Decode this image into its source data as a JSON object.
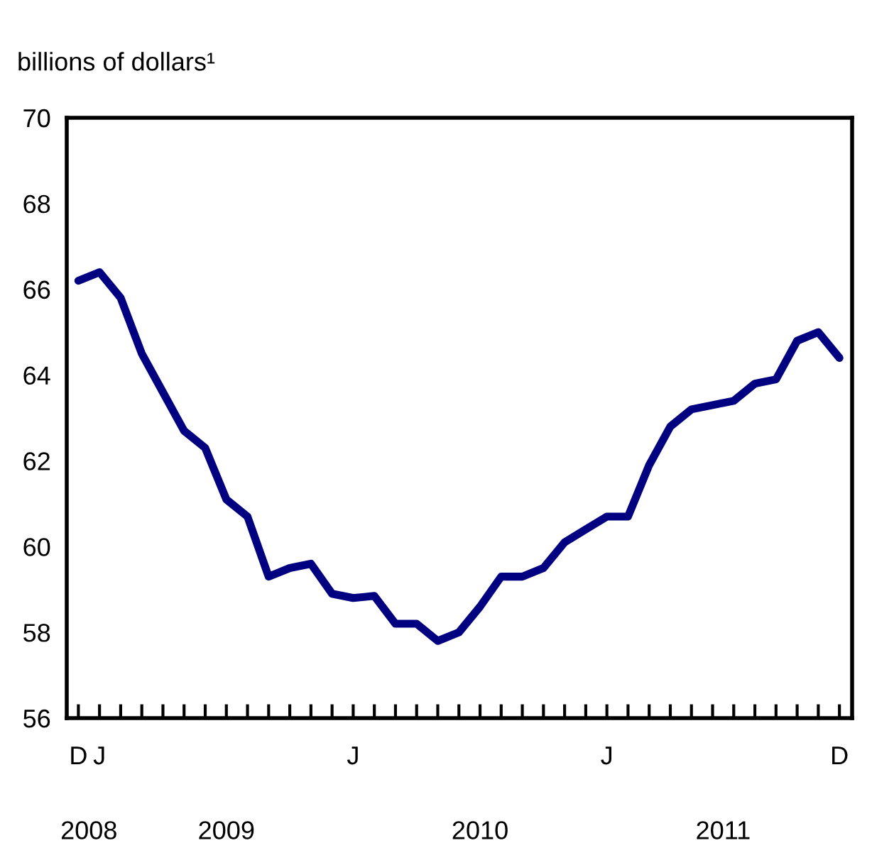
{
  "chart_data": {
    "type": "line",
    "ylabel": "billions of dollars¹",
    "categories": [
      "D",
      "J",
      null,
      null,
      null,
      null,
      null,
      null,
      null,
      null,
      null,
      null,
      null,
      "J",
      null,
      null,
      null,
      null,
      null,
      null,
      null,
      null,
      null,
      null,
      null,
      "J",
      null,
      null,
      null,
      null,
      null,
      null,
      null,
      null,
      null,
      null,
      "D"
    ],
    "series": [
      {
        "color": "#000080",
        "values": [
          66.2,
          66.4,
          65.8,
          64.5,
          63.6,
          62.7,
          62.3,
          61.1,
          60.7,
          59.3,
          59.5,
          59.6,
          58.9,
          58.8,
          58.85,
          58.2,
          58.2,
          57.8,
          58.0,
          58.6,
          59.3,
          59.3,
          59.5,
          60.1,
          60.4,
          60.7,
          60.7,
          61.9,
          62.8,
          63.2,
          63.3,
          63.4,
          63.8,
          63.9,
          64.8,
          65.0,
          64.4
        ]
      }
    ],
    "ylim": [
      56,
      70
    ],
    "yticks": [
      56,
      58,
      60,
      62,
      64,
      66,
      68,
      70
    ],
    "annotations": [
      "2008",
      "2009",
      "2010",
      "2011"
    ],
    "grid": false,
    "legend": false,
    "marker": "none",
    "line_style": "solid"
  }
}
